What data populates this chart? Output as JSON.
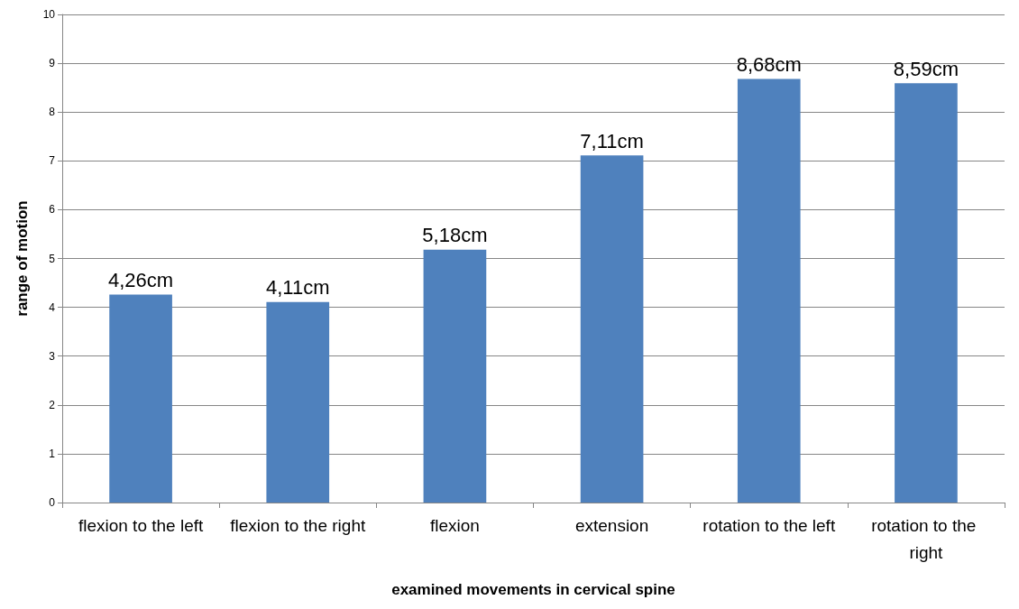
{
  "chart_data": {
    "type": "bar",
    "xlabel": "examined movements in cervical spine",
    "ylabel": "range of motion",
    "categories": [
      "flexion to the left",
      "flexion to the right",
      "flexion",
      "extension",
      "rotation to the left",
      "rotation to the right"
    ],
    "values": [
      4.26,
      4.11,
      5.18,
      7.11,
      8.68,
      8.59
    ],
    "value_labels": [
      "4,26cm",
      "4,11cm",
      "5,18cm",
      "7,11cm",
      "8,68cm",
      "8,59cm"
    ],
    "color": "#4f81bd",
    "ylim": [
      0,
      10
    ],
    "yticks": [
      0,
      1,
      2,
      3,
      4,
      5,
      6,
      7,
      8,
      9,
      10
    ],
    "grid": "y"
  }
}
